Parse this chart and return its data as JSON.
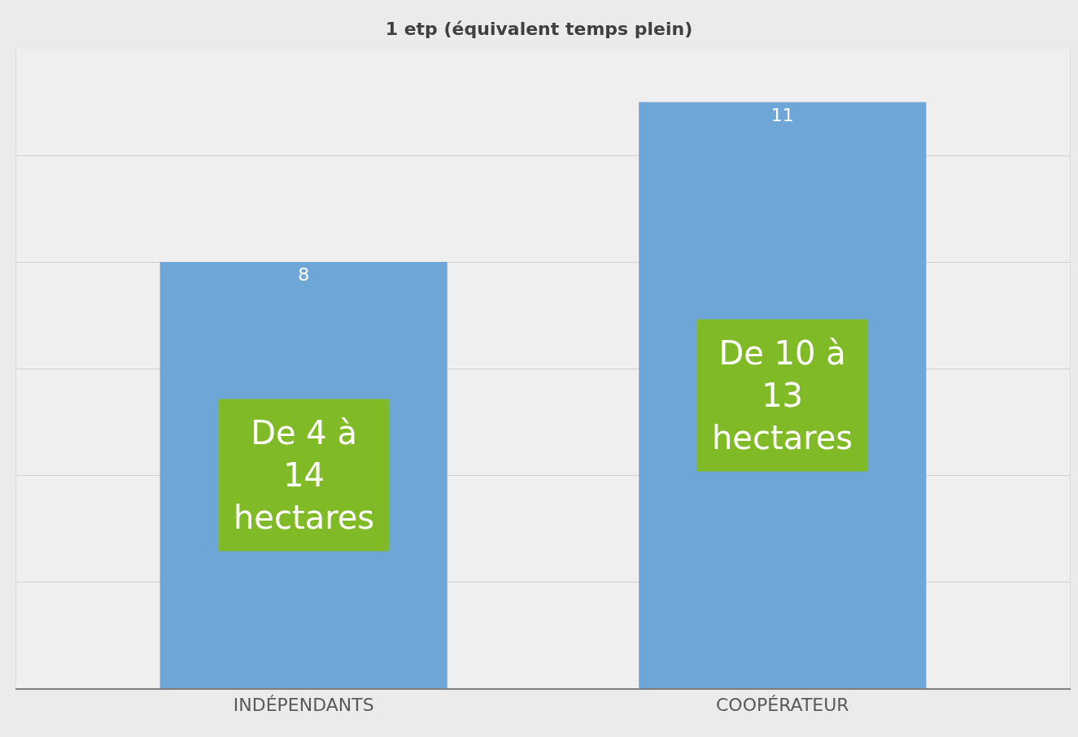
{
  "chart_data": {
    "type": "bar",
    "title": "1 etp (équivalent temps plein)",
    "categories": [
      "INDÉPENDANTS",
      "COOPÉRATEUR"
    ],
    "values": [
      8,
      11
    ],
    "color": "#6fa6d8",
    "data_labels": true,
    "ylim": [
      0,
      12
    ],
    "yticks": [
      {
        "value": 0,
        "label": null
      },
      {
        "value": 2,
        "label": null
      },
      {
        "value": 4,
        "label": null
      },
      {
        "value": 6,
        "label": null
      },
      {
        "value": 8,
        "label": null
      },
      {
        "value": 10,
        "label": null
      }
    ],
    "grid": "y",
    "tick_labels": "x",
    "annotations": [
      "De 4 à\n14\nhectares",
      "De 10 à\n13\nhectares"
    ]
  }
}
